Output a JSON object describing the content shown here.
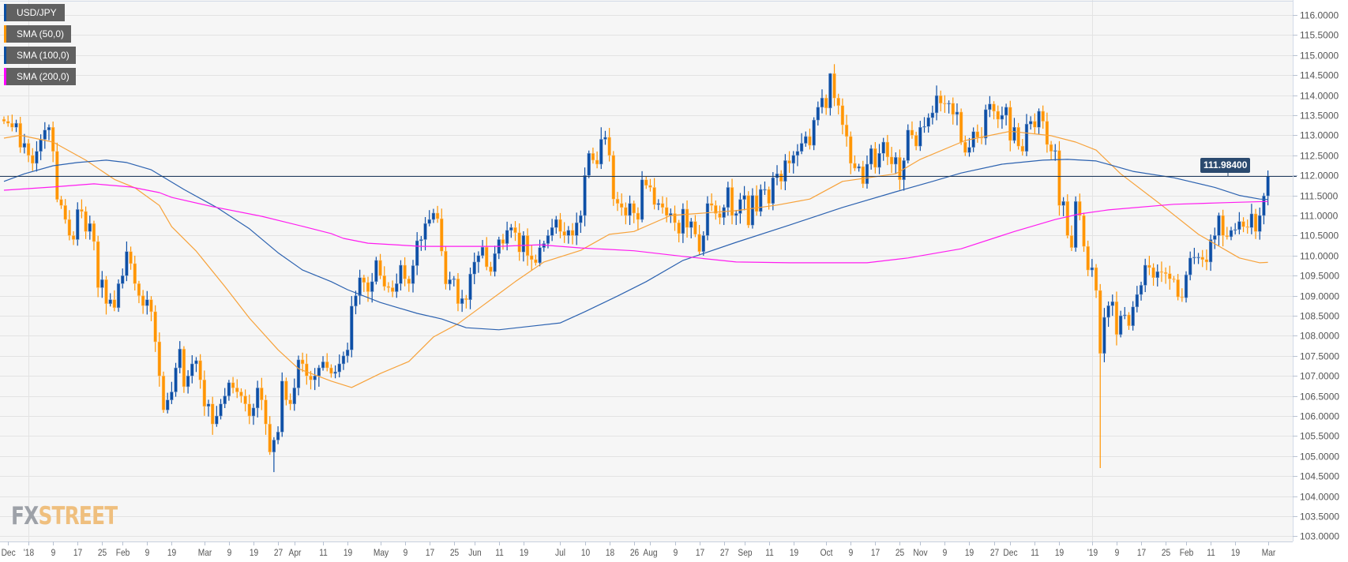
{
  "legend": [
    {
      "label": "USD/JPY",
      "color": "#0a4ea3"
    },
    {
      "label": "SMA (50,0)",
      "color": "#ff9500"
    },
    {
      "label": "SMA (100,0)",
      "color": "#0a4ea3"
    },
    {
      "label": "SMA (200,0)",
      "color": "#ff00ff"
    }
  ],
  "logo": {
    "fx": "FX",
    "street": "STREET"
  },
  "colors": {
    "up": "#0d4fa6",
    "down": "#ff9500",
    "sma50": "#f7a23a",
    "sma100": "#2c62b0",
    "sma200": "#ff1cf0",
    "price_line": "#1f3b5e",
    "grid": "#e3e3e3",
    "bg": "#f6f6f6"
  },
  "chart_data": {
    "type": "candlestick",
    "symbol": "USD/JPY",
    "timeframe": "daily",
    "current_price": "111.98400",
    "current_price_value": 111.984,
    "ylim": [
      103.0,
      116.0
    ],
    "yticks": [
      "103.0000",
      "103.5000",
      "104.0000",
      "104.5000",
      "105.0000",
      "105.5000",
      "106.0000",
      "106.5000",
      "107.0000",
      "107.5000",
      "108.0000",
      "108.5000",
      "109.0000",
      "109.5000",
      "110.0000",
      "110.5000",
      "111.0000",
      "111.5000",
      "112.0000",
      "112.5000",
      "113.0000",
      "113.5000",
      "114.0000",
      "114.5000",
      "115.0000",
      "115.5000",
      "116.0000"
    ],
    "xticks": [
      {
        "i": 1,
        "label": "Dec"
      },
      {
        "i": 6,
        "label": "'18",
        "year": true
      },
      {
        "i": 12,
        "label": "9"
      },
      {
        "i": 18,
        "label": "17"
      },
      {
        "i": 24,
        "label": "25"
      },
      {
        "i": 29,
        "label": "Feb"
      },
      {
        "i": 35,
        "label": "9"
      },
      {
        "i": 41,
        "label": "19"
      },
      {
        "i": 49,
        "label": "Mar"
      },
      {
        "i": 55,
        "label": "9"
      },
      {
        "i": 61,
        "label": "19"
      },
      {
        "i": 67,
        "label": "27"
      },
      {
        "i": 71,
        "label": "Apr"
      },
      {
        "i": 78,
        "label": "11"
      },
      {
        "i": 84,
        "label": "19"
      },
      {
        "i": 92,
        "label": "May"
      },
      {
        "i": 98,
        "label": "9"
      },
      {
        "i": 104,
        "label": "17"
      },
      {
        "i": 110,
        "label": "25"
      },
      {
        "i": 115,
        "label": "Jun"
      },
      {
        "i": 121,
        "label": "11"
      },
      {
        "i": 127,
        "label": "19"
      },
      {
        "i": 136,
        "label": "Jul"
      },
      {
        "i": 142,
        "label": "10"
      },
      {
        "i": 148,
        "label": "18"
      },
      {
        "i": 154,
        "label": "26"
      },
      {
        "i": 158,
        "label": "Aug"
      },
      {
        "i": 164,
        "label": "9"
      },
      {
        "i": 170,
        "label": "17"
      },
      {
        "i": 176,
        "label": "27"
      },
      {
        "i": 181,
        "label": "Sep"
      },
      {
        "i": 187,
        "label": "11"
      },
      {
        "i": 193,
        "label": "19"
      },
      {
        "i": 201,
        "label": "Oct"
      },
      {
        "i": 207,
        "label": "9"
      },
      {
        "i": 213,
        "label": "17"
      },
      {
        "i": 219,
        "label": "25"
      },
      {
        "i": 224,
        "label": "Nov"
      },
      {
        "i": 230,
        "label": "9"
      },
      {
        "i": 236,
        "label": "19"
      },
      {
        "i": 242,
        "label": "27"
      },
      {
        "i": 246,
        "label": "Dec"
      },
      {
        "i": 252,
        "label": "11"
      },
      {
        "i": 258,
        "label": "19"
      },
      {
        "i": 266,
        "label": "'19",
        "year": true
      },
      {
        "i": 272,
        "label": "9"
      },
      {
        "i": 278,
        "label": "17"
      },
      {
        "i": 284,
        "label": "25"
      },
      {
        "i": 289,
        "label": "Feb"
      },
      {
        "i": 295,
        "label": "11"
      },
      {
        "i": 301,
        "label": "19"
      },
      {
        "i": 309,
        "label": "Mar"
      }
    ],
    "first_open": 113.4,
    "close": [
      113.35,
      113.3,
      113.2,
      113.3,
      112.7,
      112.8,
      112.5,
      112.3,
      112.6,
      112.9,
      113.13,
      113.2,
      112.6,
      111.4,
      111.25,
      110.9,
      110.5,
      110.4,
      111.15,
      111.1,
      110.6,
      110.8,
      110.35,
      109.2,
      109.4,
      108.8,
      108.9,
      108.7,
      109.3,
      109.5,
      110.1,
      109.8,
      109.3,
      109.0,
      108.75,
      108.9,
      108.6,
      107.85,
      107.0,
      106.15,
      106.4,
      106.6,
      107.2,
      107.67,
      106.73,
      107.0,
      107.3,
      107.38,
      106.9,
      106.24,
      106.3,
      105.8,
      106.0,
      106.3,
      106.5,
      106.83,
      106.7,
      106.6,
      106.5,
      106.3,
      106.0,
      106.2,
      106.7,
      106.4,
      105.8,
      105.1,
      105.4,
      105.6,
      106.87,
      106.4,
      106.3,
      106.7,
      107.4,
      107.3,
      107.0,
      106.9,
      107.0,
      107.2,
      107.35,
      107.2,
      107.06,
      107.1,
      107.3,
      107.5,
      107.65,
      108.74,
      109.0,
      109.45,
      109.33,
      109.1,
      109.35,
      109.88,
      109.5,
      109.23,
      109.2,
      109.1,
      109.3,
      109.76,
      109.42,
      109.3,
      109.75,
      110.37,
      110.4,
      110.8,
      110.9,
      111.06,
      110.92,
      110.11,
      109.29,
      109.4,
      109.42,
      108.8,
      108.93,
      108.9,
      109.54,
      109.84,
      110.0,
      110.21,
      109.72,
      109.6,
      110.05,
      110.4,
      110.3,
      110.63,
      110.7,
      110.57,
      110.09,
      110.5,
      110.0,
      109.9,
      109.82,
      110.2,
      110.3,
      110.5,
      110.7,
      110.9,
      110.6,
      110.5,
      110.63,
      110.5,
      110.82,
      111.0,
      112.0,
      112.55,
      112.38,
      112.28,
      112.9,
      112.95,
      112.5,
      111.41,
      111.3,
      111.2,
      111.0,
      111.3,
      111.06,
      110.9,
      111.89,
      111.75,
      111.7,
      111.27,
      111.3,
      111.2,
      111.0,
      111.05,
      110.82,
      110.55,
      111.16,
      110.7,
      110.85,
      110.53,
      110.1,
      110.5,
      111.3,
      111.25,
      111.05,
      110.95,
      111.2,
      111.7,
      111.0,
      111.05,
      111.4,
      111.5,
      110.76,
      111.5,
      111.1,
      111.65,
      111.65,
      111.3,
      111.94,
      112.04,
      111.85,
      112.37,
      112.3,
      112.5,
      112.6,
      112.8,
      112.97,
      112.75,
      113.38,
      113.7,
      113.93,
      113.68,
      114.54,
      113.93,
      113.74,
      113.26,
      112.97,
      112.3,
      112.18,
      112.22,
      111.79,
      112.28,
      112.67,
      112.2,
      112.55,
      112.83,
      112.46,
      112.28,
      112.45,
      111.89,
      112.37,
      113.13,
      113.0,
      112.73,
      113.2,
      113.22,
      113.44,
      113.56,
      113.99,
      113.8,
      113.78,
      113.8,
      113.52,
      113.58,
      112.83,
      112.57,
      112.7,
      113.09,
      112.95,
      112.93,
      113.64,
      113.78,
      113.6,
      113.4,
      113.5,
      113.7,
      112.87,
      113.2,
      112.73,
      112.6,
      113.28,
      113.35,
      113.2,
      113.6,
      113.35,
      112.77,
      112.6,
      112.62,
      111.25,
      111.35,
      110.5,
      110.2,
      111.35,
      111.0,
      110.23,
      109.64,
      109.7,
      109.13,
      107.56,
      108.46,
      108.75,
      108.85,
      108.03,
      108.5,
      108.52,
      108.25,
      108.72,
      109.03,
      109.26,
      109.76,
      109.7,
      109.45,
      109.6,
      109.58,
      109.55,
      109.42,
      109.4,
      108.97,
      108.95,
      109.52,
      109.94,
      109.96,
      109.96,
      109.9,
      109.84,
      110.4,
      110.5,
      111.0,
      110.5,
      110.47,
      110.63,
      110.65,
      110.85,
      110.72,
      110.7,
      111.04,
      110.6,
      111.0,
      111.49,
      111.98
    ],
    "low_overrides": {
      "268": 104.7,
      "66": 104.6
    },
    "high_overrides": {
      "202": 114.55,
      "146": 113.2
    },
    "series": [
      {
        "name": "SMA (50,0)",
        "key": "sma50",
        "points": [
          [
            0,
            112.93
          ],
          [
            4,
            113.0
          ],
          [
            12,
            112.83
          ],
          [
            20,
            112.38
          ],
          [
            27,
            111.9
          ],
          [
            32,
            111.69
          ],
          [
            38,
            111.25
          ],
          [
            41,
            110.72
          ],
          [
            47,
            110.11
          ],
          [
            54,
            109.23
          ],
          [
            60,
            108.44
          ],
          [
            67,
            107.65
          ],
          [
            72,
            107.18
          ],
          [
            80,
            106.87
          ],
          [
            85,
            106.71
          ],
          [
            92,
            107.06
          ],
          [
            99,
            107.36
          ],
          [
            105,
            107.97
          ],
          [
            111,
            108.3
          ],
          [
            117,
            108.75
          ],
          [
            125,
            109.35
          ],
          [
            132,
            109.84
          ],
          [
            141,
            110.13
          ],
          [
            148,
            110.53
          ],
          [
            154,
            110.6
          ],
          [
            163,
            111.0
          ],
          [
            179,
            111.12
          ],
          [
            189,
            111.26
          ],
          [
            197,
            111.41
          ],
          [
            205,
            111.85
          ],
          [
            218,
            112.04
          ],
          [
            224,
            112.4
          ],
          [
            235,
            112.87
          ],
          [
            246,
            113.1
          ],
          [
            256,
            112.99
          ],
          [
            262,
            112.83
          ],
          [
            267,
            112.63
          ],
          [
            273,
            112.04
          ],
          [
            283,
            111.26
          ],
          [
            292,
            110.53
          ],
          [
            302,
            109.94
          ],
          [
            307,
            109.82
          ],
          [
            309,
            109.83
          ]
        ]
      },
      {
        "name": "SMA (100,0)",
        "key": "sma100",
        "points": [
          [
            0,
            111.85
          ],
          [
            5,
            112.04
          ],
          [
            12,
            112.24
          ],
          [
            18,
            112.32
          ],
          [
            25,
            112.38
          ],
          [
            30,
            112.32
          ],
          [
            36,
            112.14
          ],
          [
            44,
            111.65
          ],
          [
            52,
            111.2
          ],
          [
            60,
            110.67
          ],
          [
            67,
            110.07
          ],
          [
            73,
            109.64
          ],
          [
            80,
            109.35
          ],
          [
            84,
            109.15
          ],
          [
            92,
            108.83
          ],
          [
            101,
            108.56
          ],
          [
            107,
            108.42
          ],
          [
            113,
            108.2
          ],
          [
            121,
            108.15
          ],
          [
            129,
            108.24
          ],
          [
            136,
            108.32
          ],
          [
            142,
            108.6
          ],
          [
            150,
            108.99
          ],
          [
            157,
            109.35
          ],
          [
            166,
            109.88
          ],
          [
            179,
            110.33
          ],
          [
            192,
            110.76
          ],
          [
            205,
            111.2
          ],
          [
            218,
            111.59
          ],
          [
            227,
            111.85
          ],
          [
            234,
            112.06
          ],
          [
            244,
            112.28
          ],
          [
            254,
            112.38
          ],
          [
            260,
            112.4
          ],
          [
            267,
            112.36
          ],
          [
            276,
            112.1
          ],
          [
            286,
            111.94
          ],
          [
            296,
            111.7
          ],
          [
            302,
            111.5
          ],
          [
            307,
            111.41
          ],
          [
            309,
            111.4
          ]
        ]
      },
      {
        "name": "SMA (200,0)",
        "key": "sma200",
        "points": [
          [
            0,
            111.63
          ],
          [
            12,
            111.71
          ],
          [
            22,
            111.79
          ],
          [
            31,
            111.71
          ],
          [
            38,
            111.57
          ],
          [
            41,
            111.45
          ],
          [
            51,
            111.22
          ],
          [
            63,
            110.98
          ],
          [
            73,
            110.73
          ],
          [
            80,
            110.55
          ],
          [
            83,
            110.43
          ],
          [
            89,
            110.31
          ],
          [
            102,
            110.23
          ],
          [
            121,
            110.23
          ],
          [
            131,
            110.27
          ],
          [
            141,
            110.19
          ],
          [
            154,
            110.12
          ],
          [
            166,
            109.98
          ],
          [
            179,
            109.84
          ],
          [
            192,
            109.82
          ],
          [
            211,
            109.82
          ],
          [
            221,
            109.94
          ],
          [
            234,
            110.17
          ],
          [
            247,
            110.6
          ],
          [
            257,
            110.9
          ],
          [
            263,
            111.04
          ],
          [
            270,
            111.14
          ],
          [
            286,
            111.28
          ],
          [
            299,
            111.32
          ],
          [
            309,
            111.35
          ]
        ]
      }
    ]
  }
}
